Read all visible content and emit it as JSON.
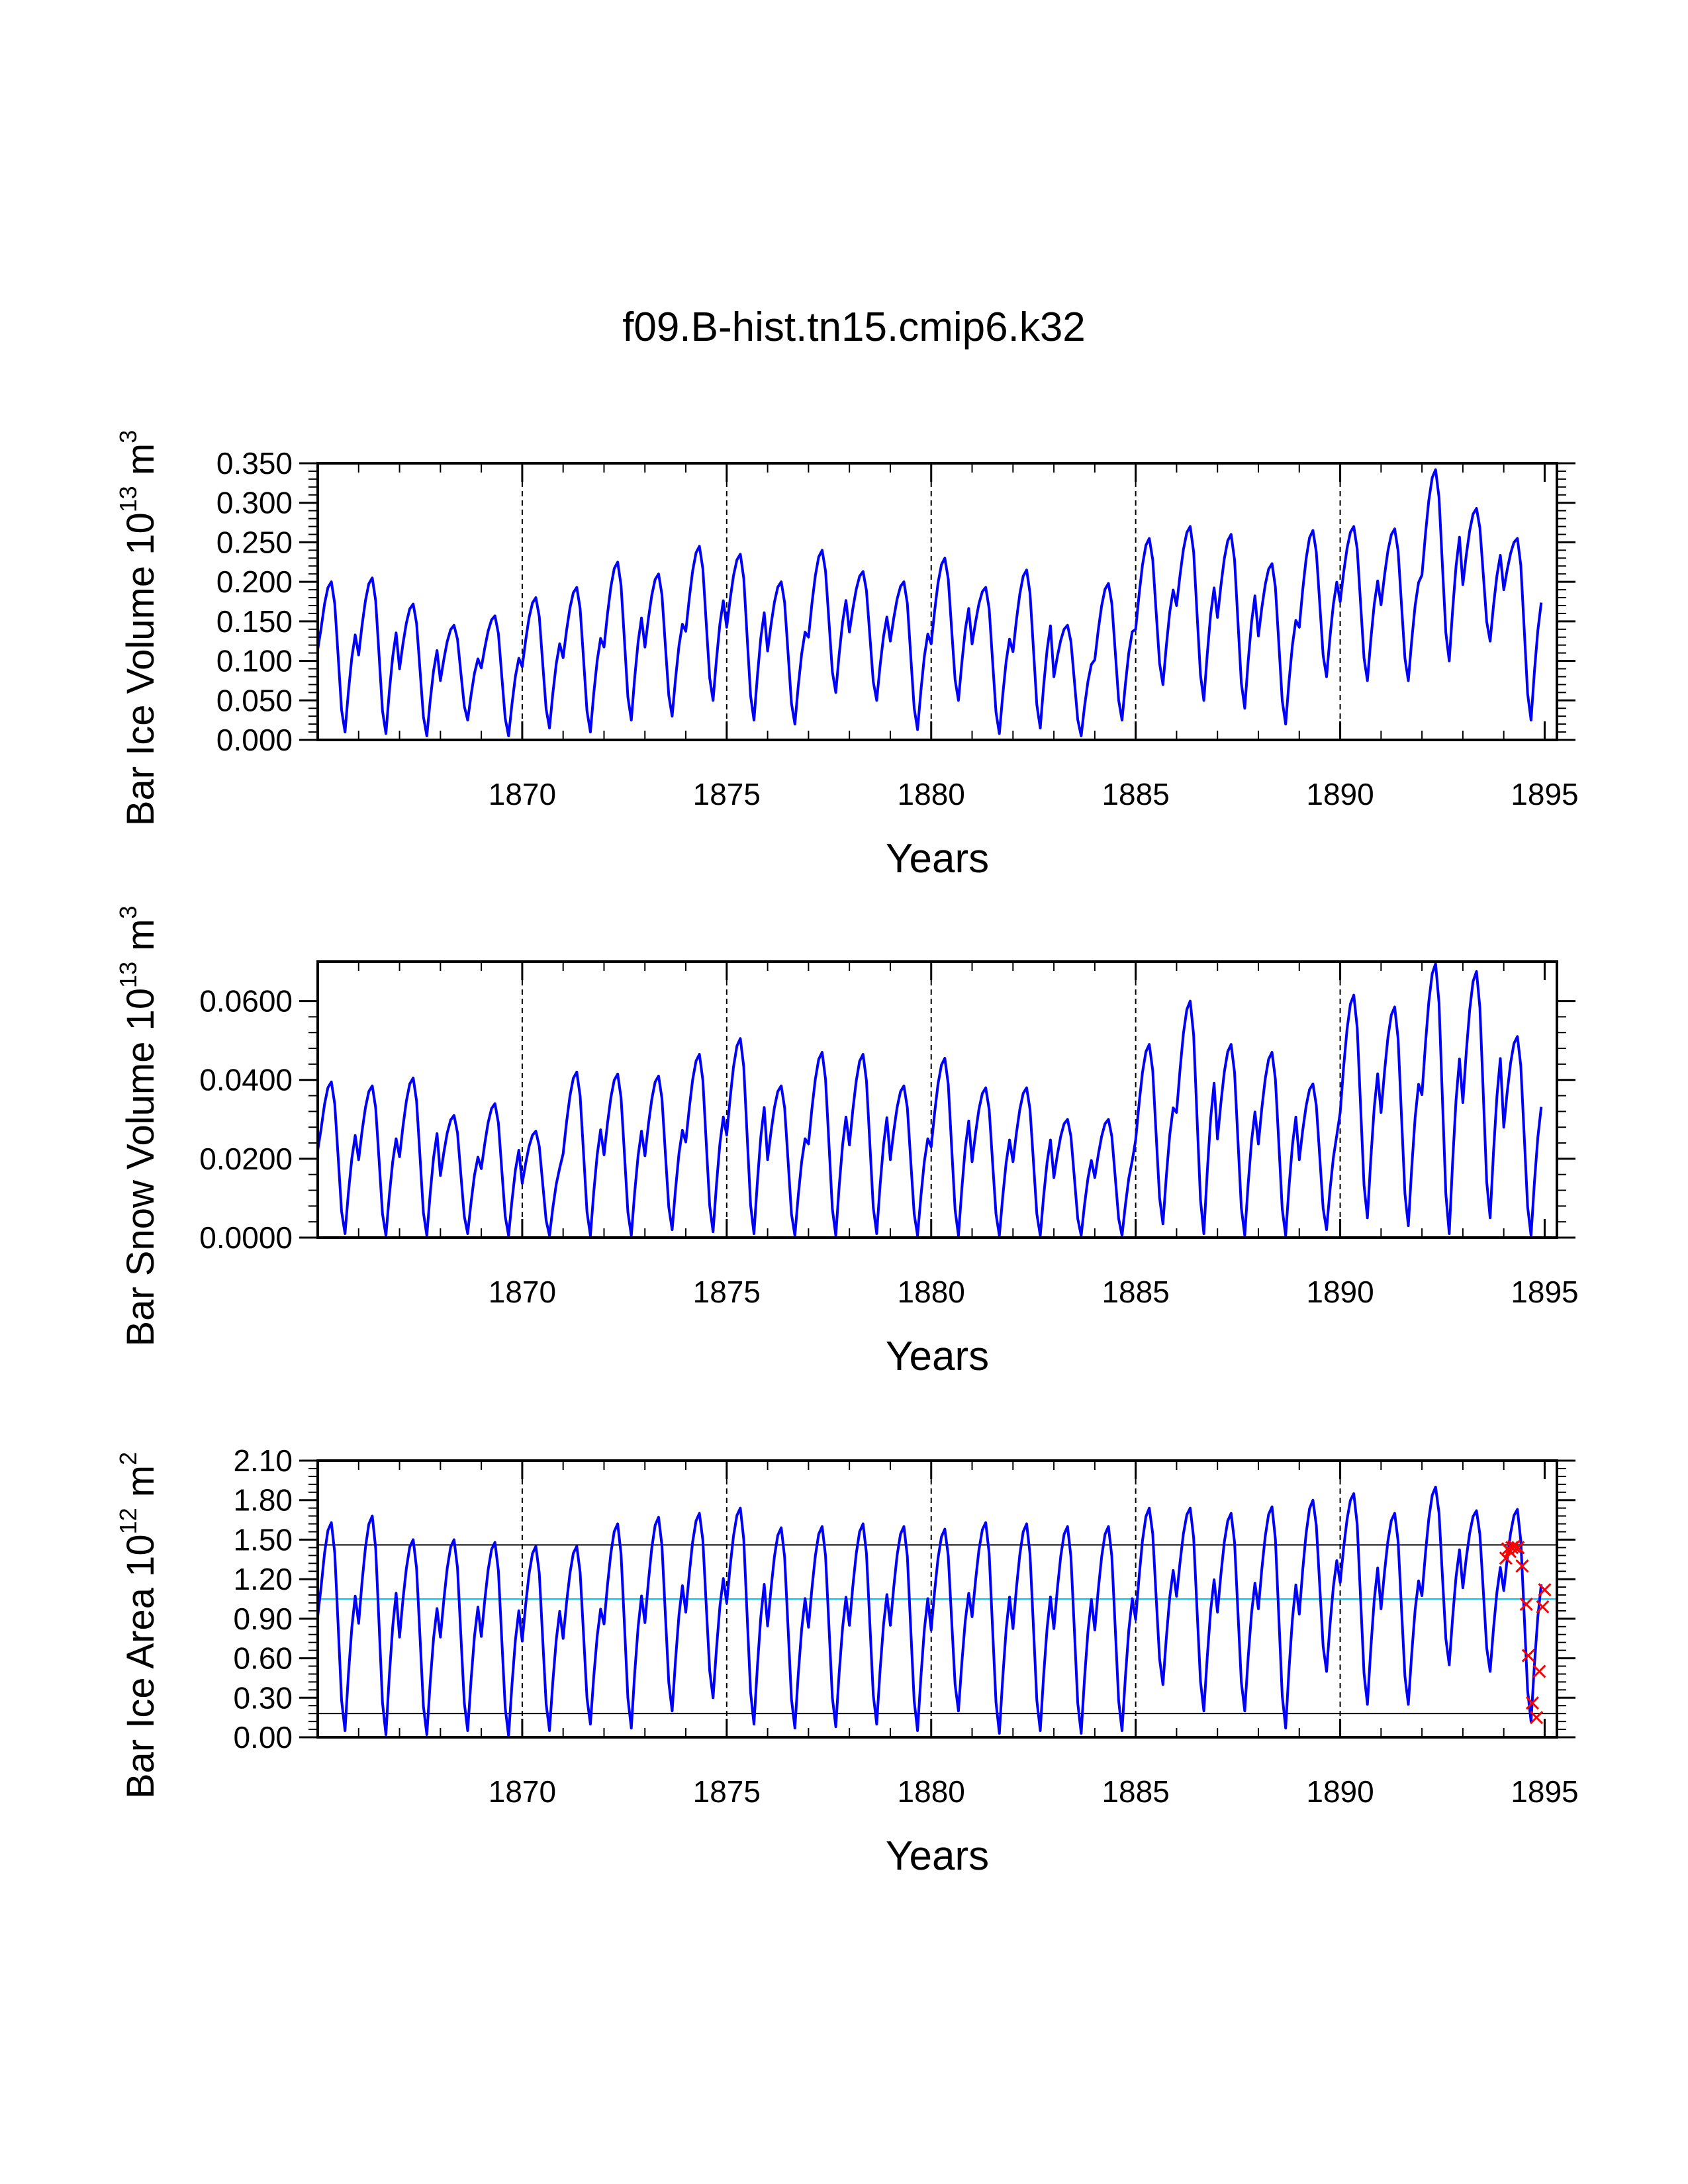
{
  "title": "f09.B-hist.tn15.cmip6.k32",
  "colors": {
    "series": "#0000ff",
    "markers": "#ff0000",
    "mean_line": "#00c8ff",
    "ref_lines": "#000000"
  },
  "chart_data": [
    {
      "type": "line",
      "id": "ice-volume",
      "title": "",
      "xlabel": "Years",
      "ylabel_parts": [
        "Bar Ice Volume 10",
        "13",
        " m",
        "3"
      ],
      "xlim": [
        1865,
        1895.3
      ],
      "ylim": [
        0,
        0.35
      ],
      "x_ticks": [
        1870,
        1875,
        1880,
        1885,
        1890,
        1895
      ],
      "x_tick_labels": [
        "1870",
        "1875",
        "1880",
        "1885",
        "1890",
        "1895"
      ],
      "y_ticks": [
        0,
        0.05,
        0.1,
        0.15,
        0.2,
        0.25,
        0.3,
        0.35
      ],
      "y_tick_labels": [
        "0.000",
        "0.050",
        "0.100",
        "0.150",
        "0.200",
        "0.250",
        "0.300",
        "0.350"
      ],
      "max": [
        0.2,
        0.205,
        0.172,
        0.145,
        0.157,
        0.18,
        0.193,
        0.225,
        0.21,
        0.245,
        0.235,
        0.2,
        0.24,
        0.213,
        0.2,
        0.23,
        0.193,
        0.215,
        0.145,
        0.198,
        0.255,
        0.27,
        0.26,
        0.223,
        0.265,
        0.27,
        0.267,
        0.342,
        0.293,
        0.255
      ],
      "min": [
        0.01,
        0.008,
        0.005,
        0.025,
        0.005,
        0.015,
        0.01,
        0.025,
        0.03,
        0.05,
        0.025,
        0.02,
        0.06,
        0.05,
        0.013,
        0.05,
        0.008,
        0.015,
        0.005,
        0.025,
        0.07,
        0.05,
        0.04,
        0.02,
        0.08,
        0.075,
        0.075,
        0.1,
        0.125,
        0.025
      ]
    },
    {
      "type": "line",
      "id": "snow-volume",
      "title": "",
      "xlabel": "Years",
      "ylabel_parts": [
        "Bar Snow Volume 10",
        "13",
        " m",
        "3"
      ],
      "xlim": [
        1865,
        1895.3
      ],
      "ylim": [
        0,
        0.07
      ],
      "x_ticks": [
        1870,
        1875,
        1880,
        1885,
        1890,
        1895
      ],
      "x_tick_labels": [
        "1870",
        "1875",
        "1880",
        "1885",
        "1890",
        "1895"
      ],
      "y_ticks": [
        0,
        0.02,
        0.04,
        0.06
      ],
      "y_tick_labels": [
        "0.0000",
        "0.0200",
        "0.0400",
        "0.0600"
      ],
      "max": [
        0.0395,
        0.0385,
        0.0405,
        0.031,
        0.034,
        0.027,
        0.042,
        0.0415,
        0.041,
        0.0465,
        0.0505,
        0.0385,
        0.047,
        0.0465,
        0.0385,
        0.0455,
        0.038,
        0.038,
        0.03,
        0.03,
        0.049,
        0.06,
        0.049,
        0.047,
        0.039,
        0.0615,
        0.0585,
        0.0695,
        0.0675,
        0.051
      ],
      "min": [
        0.001,
        0.0005,
        0.0005,
        0.001,
        0.0005,
        0.0005,
        0.0005,
        0.0005,
        0.002,
        0.0015,
        0.001,
        0.0005,
        0.0005,
        0.001,
        0.0005,
        0.0005,
        0.0005,
        0.0005,
        0.0005,
        0.0005,
        0.0035,
        0.001,
        0.0005,
        0.0005,
        0.002,
        0.005,
        0.003,
        0.001,
        0.005,
        0.0005
      ]
    },
    {
      "type": "line",
      "id": "ice-area",
      "title": "",
      "xlabel": "Years",
      "ylabel_parts": [
        "Bar Ice Area 10",
        "12",
        " m",
        "2"
      ],
      "xlim": [
        1865,
        1895.3
      ],
      "ylim": [
        0,
        2.1
      ],
      "x_ticks": [
        1870,
        1875,
        1880,
        1885,
        1890,
        1895
      ],
      "x_tick_labels": [
        "1870",
        "1875",
        "1880",
        "1885",
        "1890",
        "1895"
      ],
      "y_ticks": [
        0,
        0.3,
        0.6,
        0.9,
        1.2,
        1.5,
        1.8,
        2.1
      ],
      "y_tick_labels": [
        "0.00",
        "0.30",
        "0.60",
        "0.90",
        "1.20",
        "1.50",
        "1.80",
        "2.10"
      ],
      "ref_lines": [
        1.46,
        0.18
      ],
      "mean_line": 1.05,
      "max": [
        1.63,
        1.68,
        1.5,
        1.5,
        1.48,
        1.45,
        1.45,
        1.62,
        1.67,
        1.7,
        1.74,
        1.59,
        1.6,
        1.62,
        1.6,
        1.58,
        1.63,
        1.62,
        1.6,
        1.6,
        1.74,
        1.74,
        1.7,
        1.75,
        1.8,
        1.85,
        1.7,
        1.9,
        1.72,
        1.73
      ],
      "min": [
        0.05,
        0.02,
        0.02,
        0.05,
        0.01,
        0.05,
        0.1,
        0.07,
        0.2,
        0.3,
        0.1,
        0.07,
        0.08,
        0.1,
        0.05,
        0.2,
        0.03,
        0.05,
        0.03,
        0.05,
        0.4,
        0.2,
        0.2,
        0.07,
        0.5,
        0.25,
        0.25,
        0.55,
        0.5,
        0.12
      ],
      "markers": [
        {
          "x": 1894.05,
          "y": 1.36
        },
        {
          "x": 1894.1,
          "y": 1.43
        },
        {
          "x": 1894.15,
          "y": 1.41
        },
        {
          "x": 1894.2,
          "y": 1.44
        },
        {
          "x": 1894.25,
          "y": 1.45
        },
        {
          "x": 1894.35,
          "y": 1.44
        },
        {
          "x": 1894.45,
          "y": 1.3
        },
        {
          "x": 1894.55,
          "y": 1.01
        },
        {
          "x": 1894.6,
          "y": 0.62
        },
        {
          "x": 1894.7,
          "y": 0.26
        },
        {
          "x": 1894.8,
          "y": 0.15
        },
        {
          "x": 1894.87,
          "y": 0.5
        },
        {
          "x": 1894.95,
          "y": 0.99
        },
        {
          "x": 1895.0,
          "y": 1.12
        }
      ]
    }
  ]
}
